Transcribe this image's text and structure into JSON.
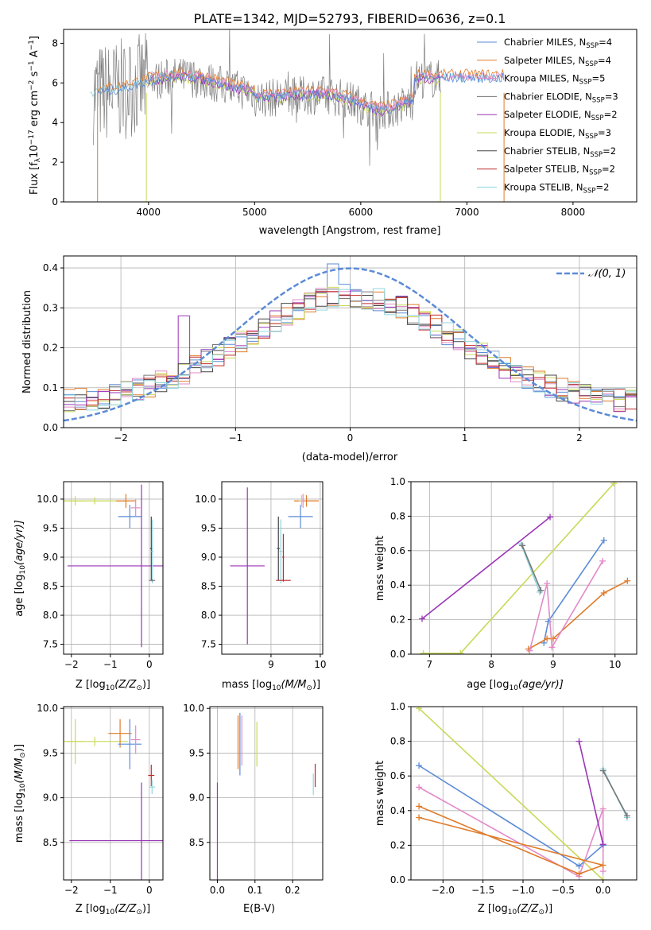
{
  "chart_data": [
    {
      "id": "spectrum",
      "type": "line",
      "title": "PLATE=1342, MJD=52793, FIBERID=0636, z=0.1",
      "xlabel": "wavelength [Angstrom, rest frame]",
      "ylabel_main": "Flux [f",
      "ylabel_sub": "λ",
      "ylabel_tail": "10",
      "ylabel_exp": "−17",
      "ylabel_rest": " erg cm",
      "ylabel_exp2": "−2",
      "ylabel_rest2": " s",
      "ylabel_exp3": "−1",
      "ylabel_rest3": " A",
      "ylabel_exp4": "−1",
      "ylabel_end": "]",
      "xlim": [
        3200,
        8600
      ],
      "ylim": [
        0,
        8.7
      ],
      "xticks": [
        4000,
        5000,
        6000,
        7000,
        8000
      ],
      "yticks": [
        0,
        2,
        4,
        6,
        8
      ],
      "legend": [
        {
          "name": "Chabrier MILES, N",
          "sub": "SSP",
          "tail": "=4",
          "color": "#5b8bd6"
        },
        {
          "name": "Salpeter MILES, N",
          "sub": "SSP",
          "tail": "=4",
          "color": "#e07b2a"
        },
        {
          "name": "Kroupa MILES, N",
          "sub": "SSP",
          "tail": "=5",
          "color": "#e38ac8"
        },
        {
          "name": "Chabrier ELODIE, N",
          "sub": "SSP",
          "tail": "=3",
          "color": "#777777"
        },
        {
          "name": "Salpeter ELODIE, N",
          "sub": "SSP",
          "tail": "=2",
          "color": "#9b36b7"
        },
        {
          "name": "Kroupa ELODIE, N",
          "sub": "SSP",
          "tail": "=3",
          "color": "#c9d957"
        },
        {
          "name": "Chabrier STELIB, N",
          "sub": "SSP",
          "tail": "=2",
          "color": "#444444"
        },
        {
          "name": "Salpeter STELIB, N",
          "sub": "SSP",
          "tail": "=2",
          "color": "#c0292a"
        },
        {
          "name": "Kroupa STELIB, N",
          "sub": "SSP",
          "tail": "=2",
          "color": "#8fd6e0"
        }
      ]
    },
    {
      "id": "residuals",
      "type": "line",
      "xlabel": "(data-model)/error",
      "ylabel": "Normed distribution",
      "xlim": [
        -2.5,
        2.5
      ],
      "ylim": [
        0,
        0.43
      ],
      "xticks": [
        -2,
        -1,
        0,
        1,
        2
      ],
      "yticks": [
        0.0,
        0.1,
        0.2,
        0.3,
        0.4
      ],
      "legend": "𝒩(0, 1)",
      "gauss_color": "#5b8bd6"
    },
    {
      "id": "age_z",
      "type": "scatter",
      "ylabel": "age  [log",
      "ylabel_sub": "10",
      "ylabel_end": "(age/yr)]",
      "xlabel": "Z [log",
      "xlabel_sub": "10",
      "xlabel_end": "(Z/Z",
      "xlabel_sub2": "⊙",
      "xlabel_close": ")]",
      "xlim": [
        -2.2,
        0.35
      ],
      "ylim": [
        7.33,
        10.3
      ],
      "xticks": [
        -2,
        -1,
        0
      ],
      "yticks": [
        7.5,
        8.0,
        8.5,
        9.0,
        9.5,
        10.0
      ],
      "points": [
        {
          "x": -1.4,
          "y": 9.97,
          "xerr": 0.85,
          "yerr": 0.06,
          "color": "#c9d957"
        },
        {
          "x": -1.9,
          "y": 9.97,
          "xerr": 0.2,
          "yerr": 0.08,
          "color": "#c9d957"
        },
        {
          "x": -0.6,
          "y": 9.97,
          "xerr": 0.25,
          "yerr": 0.12,
          "color": "#e07b2a"
        },
        {
          "x": -0.5,
          "y": 9.7,
          "xerr": 0.3,
          "yerr": 0.2,
          "color": "#5b8bd6"
        },
        {
          "x": -0.35,
          "y": 9.85,
          "xerr": 0.12,
          "yerr": 0.15,
          "color": "#e38ac8"
        },
        {
          "x": -0.2,
          "y": 8.85,
          "xerr": 1.9,
          "yerr": 1.4,
          "color": "#9b36b7"
        },
        {
          "x": 0.05,
          "y": 9.15,
          "xerr": 0.03,
          "yerr": 0.55,
          "color": "#444444"
        },
        {
          "x": 0.08,
          "y": 9.1,
          "xerr": 0.03,
          "yerr": 0.55,
          "color": "#8fd6e0"
        },
        {
          "x": 0.07,
          "y": 8.6,
          "xerr": 0.08,
          "yerr": 0.02,
          "color": "#777777"
        }
      ]
    },
    {
      "id": "age_mass",
      "type": "scatter",
      "xlabel": "mass [log",
      "xlabel_sub": "10",
      "xlabel_end": "(M/M",
      "xlabel_sub2": "⊙",
      "xlabel_close": ")]",
      "xlim": [
        8.0,
        10.05
      ],
      "ylim": [
        7.33,
        10.3
      ],
      "xticks": [
        9,
        10
      ],
      "yticks": [
        7.5,
        8.0,
        8.5,
        9.0,
        9.5,
        10.0
      ],
      "points": [
        {
          "x": 8.52,
          "y": 8.85,
          "xerr": 0.35,
          "yerr": 1.35,
          "color": "#9b36b7"
        },
        {
          "x": 9.15,
          "y": 9.15,
          "xerr": 0.03,
          "yerr": 0.55,
          "color": "#444444"
        },
        {
          "x": 9.2,
          "y": 9.1,
          "xerr": 0.03,
          "yerr": 0.55,
          "color": "#8fd6e0"
        },
        {
          "x": 9.25,
          "y": 8.6,
          "xerr": 0.15,
          "yerr": 0.02,
          "color": "#c0292a"
        },
        {
          "x": 9.25,
          "y": 9.0,
          "xerr": 0.02,
          "yerr": 0.4,
          "color": "#c0292a"
        },
        {
          "x": 9.6,
          "y": 9.7,
          "xerr": 0.25,
          "yerr": 0.2,
          "color": "#5b8bd6"
        },
        {
          "x": 9.72,
          "y": 9.97,
          "xerr": 0.25,
          "yerr": 0.1,
          "color": "#e07b2a"
        },
        {
          "x": 9.62,
          "y": 9.97,
          "xerr": 0.05,
          "yerr": 0.1,
          "color": "#c9d957"
        },
        {
          "x": 9.65,
          "y": 9.97,
          "xerr": 0.03,
          "yerr": 0.12,
          "color": "#e38ac8"
        }
      ]
    },
    {
      "id": "weight_age",
      "type": "line",
      "xlabel": "age  [log",
      "xlabel_sub": "10",
      "xlabel_end": "(age/yr)]",
      "ylabel": "mass weight",
      "xlim": [
        6.7,
        10.35
      ],
      "ylim": [
        0,
        1.0
      ],
      "xticks": [
        7,
        8,
        9,
        10
      ],
      "yticks": [
        0.0,
        0.2,
        0.4,
        0.6,
        0.8,
        1.0
      ],
      "series": [
        {
          "color": "#9b36b7",
          "x": [
            6.88,
            8.95
          ],
          "y": [
            0.205,
            0.795
          ]
        },
        {
          "color": "#c9d957",
          "x": [
            6.9,
            7.5,
            9.98
          ],
          "y": [
            0.005,
            0.005,
            0.99
          ]
        },
        {
          "color": "#8fd6e0",
          "x": [
            8.48,
            8.78
          ],
          "y": [
            0.64,
            0.36
          ]
        },
        {
          "color": "#777777",
          "x": [
            8.5,
            8.8
          ],
          "y": [
            0.63,
            0.37
          ]
        },
        {
          "color": "#5b8bd6",
          "x": [
            8.85,
            8.92,
            9.82
          ],
          "y": [
            0.065,
            0.19,
            0.66
          ]
        },
        {
          "color": "#e07b2a",
          "x": [
            8.6,
            8.9,
            9.0,
            9.82,
            10.2
          ],
          "y": [
            0.03,
            0.09,
            0.09,
            0.355,
            0.425
          ]
        },
        {
          "color": "#e38ac8",
          "x": [
            8.62,
            8.9,
            8.98,
            9.8
          ],
          "y": [
            0.02,
            0.41,
            0.04,
            0.54
          ]
        }
      ]
    },
    {
      "id": "mass_z",
      "type": "scatter",
      "ylabel": "mass [log",
      "ylabel_sub": "10",
      "ylabel_end": "(M/M",
      "ylabel_sub2": "⊙",
      "ylabel_close": ")]",
      "xlabel": "Z [log",
      "xlabel_sub": "10",
      "xlabel_end": "(Z/Z",
      "xlabel_sub2": "⊙",
      "xlabel_close": ")]",
      "xlim": [
        -2.2,
        0.35
      ],
      "ylim": [
        8.08,
        10.02
      ],
      "xticks": [
        -2,
        -1,
        0
      ],
      "yticks": [
        8.5,
        9.0,
        9.5,
        10.0
      ],
      "points": [
        {
          "x": -1.4,
          "y": 9.63,
          "xerr": 0.85,
          "yerr": 0.05,
          "color": "#c9d957"
        },
        {
          "x": -1.9,
          "y": 9.63,
          "xerr": 0.2,
          "yerr": 0.25,
          "color": "#c9d957"
        },
        {
          "x": -0.75,
          "y": 9.72,
          "xerr": 0.3,
          "yerr": 0.16,
          "color": "#e07b2a"
        },
        {
          "x": -0.5,
          "y": 9.6,
          "xerr": 0.3,
          "yerr": 0.28,
          "color": "#5b8bd6"
        },
        {
          "x": -0.35,
          "y": 9.65,
          "xerr": 0.12,
          "yerr": 0.16,
          "color": "#e38ac8"
        },
        {
          "x": -0.2,
          "y": 8.52,
          "xerr": 1.85,
          "yerr": 0.65,
          "color": "#9b36b7"
        },
        {
          "x": 0.05,
          "y": 9.25,
          "xerr": 0.08,
          "yerr": 0.12,
          "color": "#c0292a"
        },
        {
          "x": 0.07,
          "y": 9.12,
          "xerr": 0.08,
          "yerr": 0.08,
          "color": "#8fd6e0"
        }
      ]
    },
    {
      "id": "mass_ebv",
      "type": "scatter",
      "xlabel": "E(B-V)",
      "xlim": [
        -0.02,
        0.28
      ],
      "ylim": [
        8.08,
        10.02
      ],
      "xticks": [
        0.0,
        0.1,
        0.2
      ],
      "yticks": [
        8.5,
        9.0,
        9.5,
        10.0
      ],
      "points": [
        {
          "x": 0.0,
          "y": 8.52,
          "xerr": 0.0,
          "yerr": 0.65,
          "color": "#9b36b7"
        },
        {
          "x": 0.055,
          "y": 9.62,
          "xerr": 0.0,
          "yerr": 0.3,
          "color": "#e07b2a"
        },
        {
          "x": 0.06,
          "y": 9.6,
          "xerr": 0.0,
          "yerr": 0.35,
          "color": "#5b8bd6"
        },
        {
          "x": 0.065,
          "y": 9.64,
          "xerr": 0.0,
          "yerr": 0.28,
          "color": "#e38ac8"
        },
        {
          "x": 0.105,
          "y": 9.6,
          "xerr": 0.0,
          "yerr": 0.25,
          "color": "#c9d957"
        },
        {
          "x": 0.26,
          "y": 9.25,
          "xerr": 0.0,
          "yerr": 0.13,
          "color": "#c0292a"
        },
        {
          "x": 0.255,
          "y": 9.15,
          "xerr": 0.0,
          "yerr": 0.12,
          "color": "#8fd6e0"
        }
      ]
    },
    {
      "id": "weight_z",
      "type": "line",
      "xlabel": "Z [log",
      "xlabel_sub": "10",
      "xlabel_end": "(Z/Z",
      "xlabel_sub2": "⊙",
      "xlabel_close": ")]",
      "ylabel": "mass weight",
      "xlim": [
        -2.4,
        0.42
      ],
      "ylim": [
        0,
        1.0
      ],
      "xticks": [
        -2.0,
        -1.5,
        -1.0,
        -0.5,
        0.0
      ],
      "yticks": [
        0.0,
        0.2,
        0.4,
        0.6,
        0.8,
        1.0
      ],
      "series": [
        {
          "color": "#c9d957",
          "x": [
            -2.3,
            -0.0
          ],
          "y": [
            0.99,
            0.0
          ]
        },
        {
          "color": "#5b8bd6",
          "x": [
            -2.3,
            -0.3,
            0.0
          ],
          "y": [
            0.66,
            0.08,
            0.2
          ]
        },
        {
          "color": "#e38ac8",
          "x": [
            -2.3,
            -0.3,
            0.0,
            0.0
          ],
          "y": [
            0.535,
            0.02,
            0.41,
            0.05
          ]
        },
        {
          "color": "#e07b2a",
          "x": [
            -2.3,
            -0.3,
            0.0,
            -2.3
          ],
          "y": [
            0.425,
            0.035,
            0.085,
            0.36
          ]
        },
        {
          "color": "#9b36b7",
          "x": [
            -0.3,
            0.0
          ],
          "y": [
            0.8,
            0.205
          ]
        },
        {
          "color": "#8fd6e0",
          "x": [
            0.0,
            0.3
          ],
          "y": [
            0.64,
            0.36
          ]
        },
        {
          "color": "#777777",
          "x": [
            0.0,
            0.3
          ],
          "y": [
            0.63,
            0.37
          ]
        }
      ]
    }
  ]
}
